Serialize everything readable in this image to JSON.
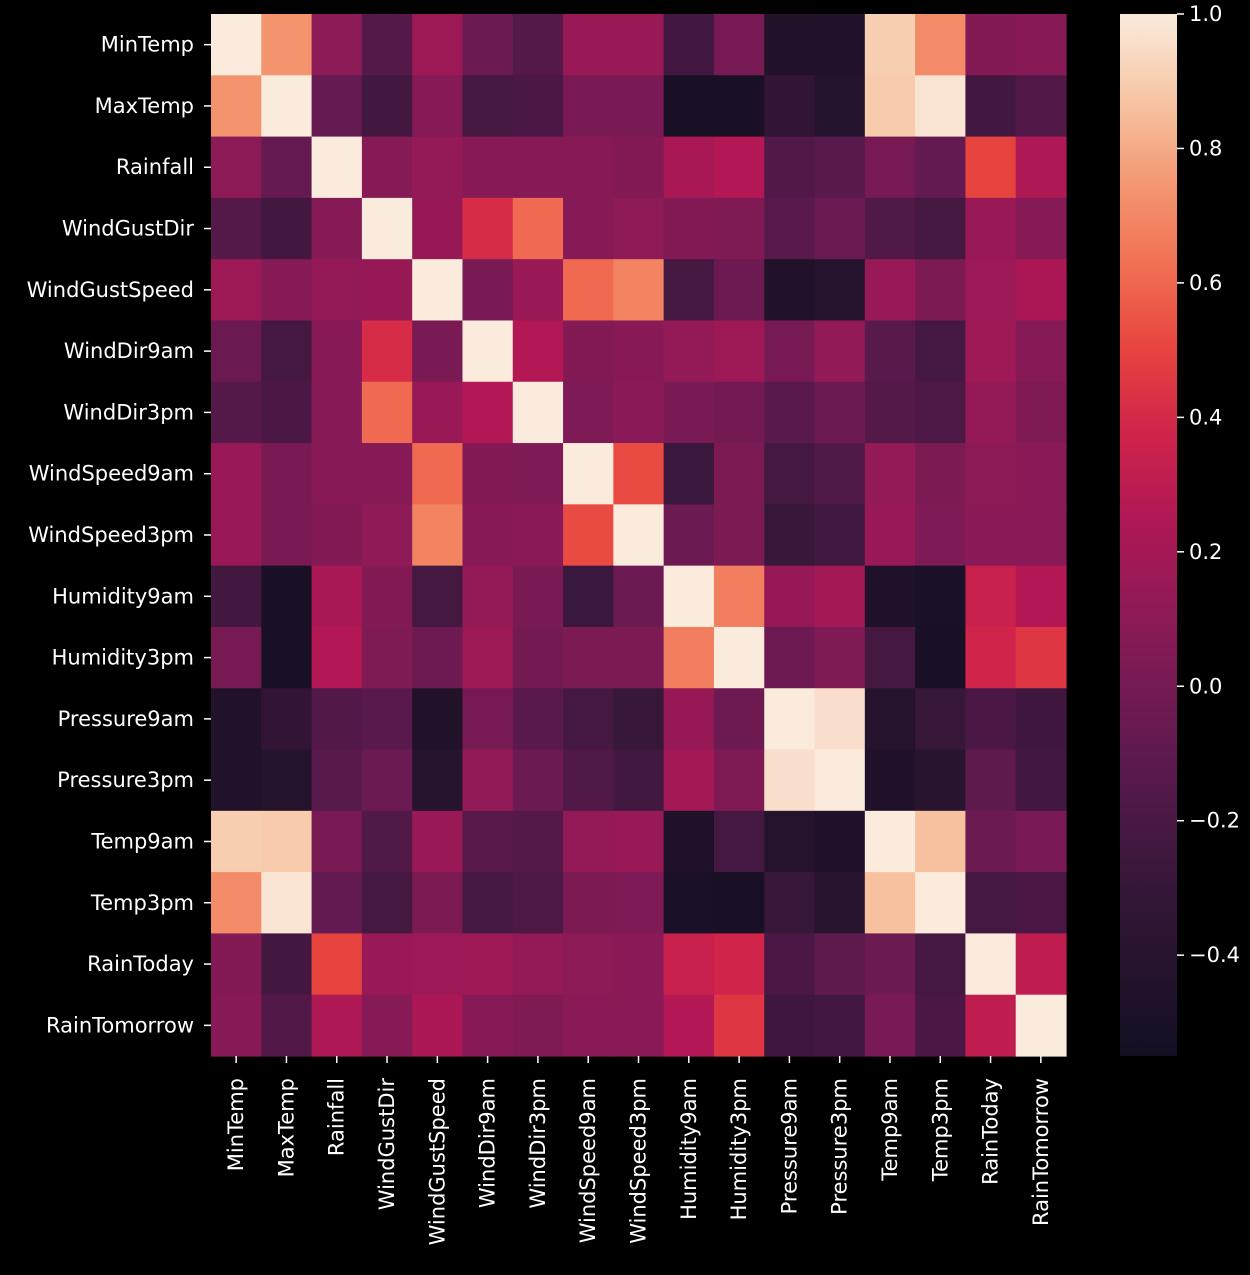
{
  "chart_data": {
    "type": "heatmap",
    "title": "",
    "xlabel": "",
    "ylabel": "",
    "row_labels": [
      "MinTemp",
      "MaxTemp",
      "Rainfall",
      "WindGustDir",
      "WindGustSpeed",
      "WindDir9am",
      "WindDir3pm",
      "WindSpeed9am",
      "WindSpeed3pm",
      "Humidity9am",
      "Humidity3pm",
      "Pressure9am",
      "Pressure3pm",
      "Temp9am",
      "Temp3pm",
      "RainToday",
      "RainTomorrow"
    ],
    "col_labels": [
      "MinTemp",
      "MaxTemp",
      "Rainfall",
      "WindGustDir",
      "WindGustSpeed",
      "WindDir9am",
      "WindDir3pm",
      "WindSpeed9am",
      "WindSpeed3pm",
      "Humidity9am",
      "Humidity3pm",
      "Pressure9am",
      "Pressure3pm",
      "Temp9am",
      "Temp3pm",
      "RainToday",
      "RainTomorrow"
    ],
    "values": [
      [
        1.0,
        0.74,
        0.1,
        -0.15,
        0.17,
        -0.05,
        -0.15,
        0.15,
        0.15,
        -0.23,
        0.01,
        -0.45,
        -0.46,
        0.9,
        0.71,
        0.06,
        0.08
      ],
      [
        0.74,
        1.0,
        -0.07,
        -0.23,
        0.07,
        -0.22,
        -0.19,
        0.02,
        0.02,
        -0.51,
        -0.51,
        -0.33,
        -0.43,
        0.89,
        0.98,
        -0.23,
        -0.16
      ],
      [
        0.1,
        -0.07,
        1.0,
        0.07,
        0.13,
        0.08,
        0.07,
        0.08,
        0.06,
        0.22,
        0.26,
        -0.16,
        -0.13,
        0.01,
        -0.08,
        0.5,
        0.24
      ],
      [
        -0.15,
        -0.23,
        0.07,
        1.0,
        0.14,
        0.41,
        0.61,
        0.07,
        0.11,
        0.06,
        0.05,
        -0.12,
        -0.04,
        -0.17,
        -0.22,
        0.15,
        0.07
      ],
      [
        0.17,
        0.07,
        0.13,
        0.14,
        1.0,
        0.02,
        0.15,
        0.61,
        0.69,
        -0.22,
        -0.03,
        -0.45,
        -0.41,
        0.15,
        0.03,
        0.16,
        0.23
      ],
      [
        -0.05,
        -0.22,
        0.08,
        0.41,
        0.02,
        1.0,
        0.26,
        0.06,
        0.08,
        0.13,
        0.17,
        0.01,
        0.12,
        -0.13,
        -0.22,
        0.18,
        0.07
      ],
      [
        -0.15,
        -0.19,
        0.07,
        0.61,
        0.15,
        0.26,
        1.0,
        0.04,
        0.09,
        0.02,
        -0.01,
        -0.12,
        -0.04,
        -0.15,
        -0.18,
        0.13,
        0.05
      ],
      [
        0.15,
        0.02,
        0.08,
        0.07,
        0.61,
        0.06,
        0.04,
        1.0,
        0.52,
        -0.27,
        0.03,
        -0.22,
        -0.17,
        0.13,
        0.03,
        0.1,
        0.09
      ],
      [
        0.15,
        0.02,
        0.06,
        0.11,
        0.69,
        0.08,
        0.09,
        0.52,
        1.0,
        -0.04,
        0.03,
        -0.29,
        -0.24,
        0.15,
        0.04,
        0.09,
        0.09
      ],
      [
        -0.23,
        -0.51,
        0.22,
        0.06,
        -0.22,
        0.13,
        0.02,
        -0.27,
        -0.04,
        1.0,
        0.67,
        0.14,
        0.19,
        -0.47,
        -0.5,
        0.35,
        0.26
      ],
      [
        0.01,
        -0.51,
        0.26,
        0.05,
        -0.03,
        0.17,
        -0.01,
        0.03,
        0.03,
        0.67,
        1.0,
        -0.03,
        0.05,
        -0.22,
        -0.51,
        0.38,
        0.45
      ],
      [
        -0.45,
        -0.33,
        -0.16,
        -0.12,
        -0.45,
        0.01,
        -0.12,
        -0.22,
        -0.29,
        0.14,
        -0.03,
        1.0,
        0.96,
        -0.42,
        -0.29,
        -0.19,
        -0.25
      ],
      [
        -0.46,
        -0.43,
        -0.13,
        -0.04,
        -0.41,
        0.12,
        -0.04,
        -0.17,
        -0.24,
        0.19,
        0.05,
        0.96,
        1.0,
        -0.47,
        -0.39,
        -0.1,
        -0.23
      ],
      [
        0.9,
        0.89,
        0.01,
        -0.17,
        0.15,
        -0.13,
        -0.15,
        0.13,
        0.15,
        -0.47,
        -0.22,
        -0.42,
        -0.47,
        1.0,
        0.86,
        -0.04,
        0.02
      ],
      [
        0.71,
        0.98,
        -0.08,
        -0.22,
        0.03,
        -0.22,
        -0.18,
        0.03,
        0.04,
        -0.5,
        -0.51,
        -0.29,
        -0.39,
        0.86,
        1.0,
        -0.22,
        -0.19
      ],
      [
        0.06,
        -0.23,
        0.5,
        0.15,
        0.16,
        0.18,
        0.13,
        0.1,
        0.09,
        0.35,
        0.38,
        -0.19,
        -0.1,
        -0.04,
        -0.22,
        1.0,
        0.31
      ],
      [
        0.08,
        -0.16,
        0.24,
        0.07,
        0.23,
        0.07,
        0.05,
        0.09,
        0.09,
        0.26,
        0.45,
        -0.25,
        -0.23,
        0.02,
        -0.19,
        0.31,
        1.0
      ]
    ],
    "colorbar": {
      "vmin": -0.55,
      "vmax": 1.0,
      "ticks": [
        1.0,
        0.8,
        0.6,
        0.4,
        0.2,
        0.0,
        -0.2,
        -0.4
      ],
      "tick_labels": [
        "1.0",
        "0.8",
        "0.6",
        "0.4",
        "0.2",
        "0.0",
        "−0.2",
        "−0.4"
      ],
      "colormap": "rocket"
    },
    "grid": false,
    "legend": "colorbar-right"
  }
}
